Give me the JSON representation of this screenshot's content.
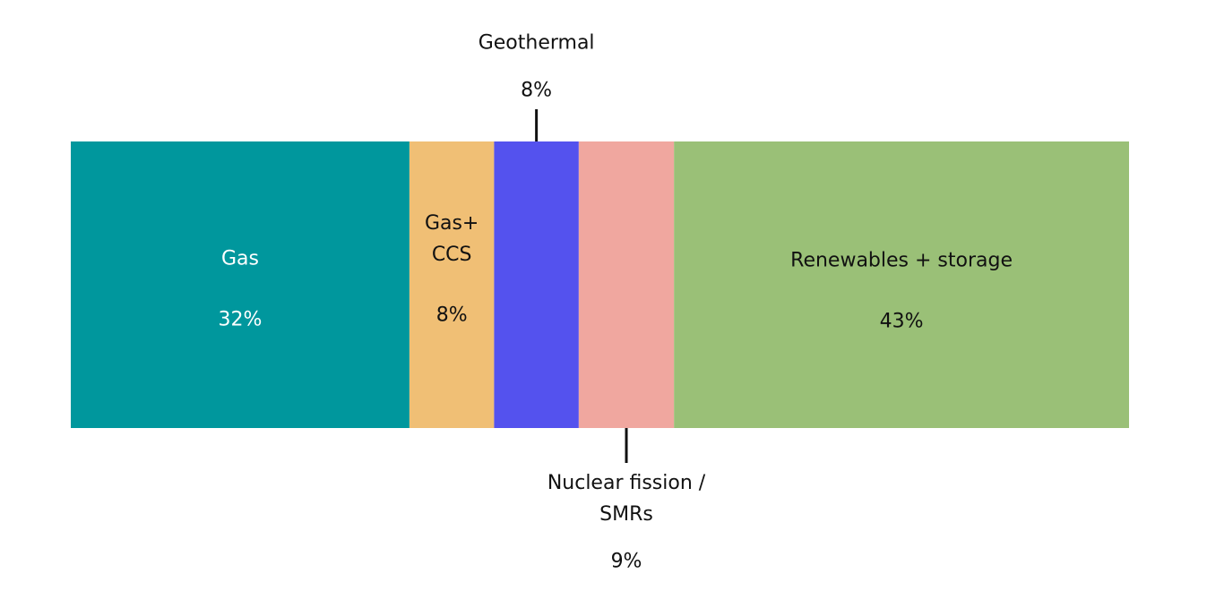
{
  "chart_data": {
    "type": "bar",
    "orientation": "horizontal",
    "stacked": true,
    "series": [
      {
        "name": "Gas",
        "color": "#00979d",
        "values": [
          32
        ],
        "value_labels": [
          "32%"
        ]
      },
      {
        "name": "Gas+ CCS",
        "color": "#f0bf75",
        "values": [
          8
        ],
        "value_labels": [
          "8%"
        ]
      },
      {
        "name": "Geothermal",
        "color": "#5452ee",
        "values": [
          8
        ],
        "value_labels": [
          "8%"
        ]
      },
      {
        "name": "Nuclear fission / SMRs",
        "color": "#f0a79f",
        "values": [
          9
        ],
        "value_labels": [
          "9%"
        ]
      },
      {
        "name": "Renewables + storage",
        "color": "#9ac077",
        "values": [
          43
        ],
        "value_labels": [
          "43%"
        ]
      }
    ]
  }
}
